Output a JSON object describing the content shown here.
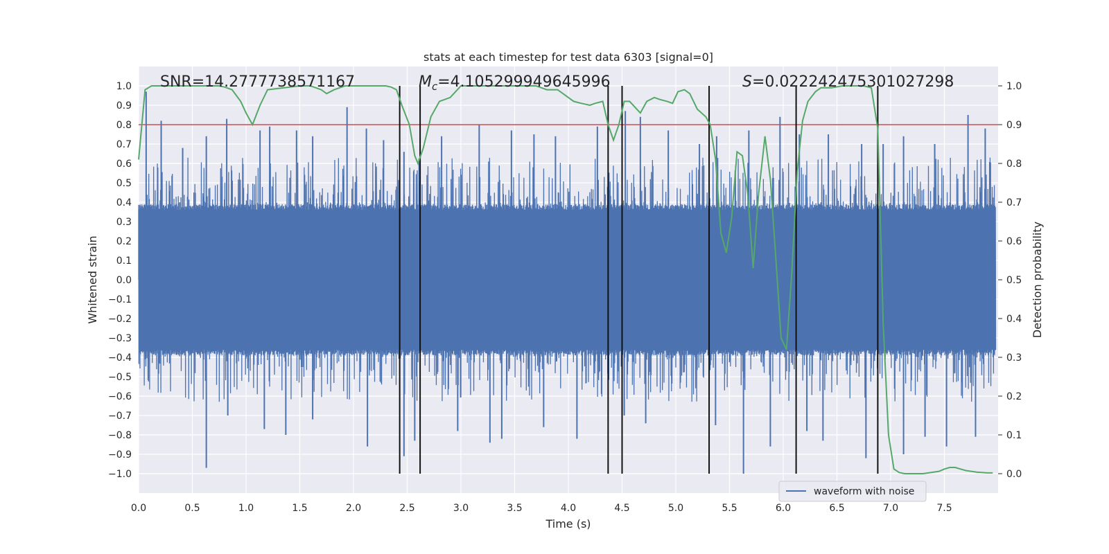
{
  "chart_data": {
    "type": "line",
    "title": "stats at each timestep for test data 6303 [signal=0]",
    "xlabel": "Time (s)",
    "ylabel": "Whitened strain",
    "y2label": "Detection probability",
    "xlim": [
      0.0,
      8.0
    ],
    "ylim": [
      -1.1,
      1.1
    ],
    "y2lim": [
      -0.05,
      1.05
    ],
    "xticks": [
      0.0,
      0.5,
      1.0,
      1.5,
      2.0,
      2.5,
      3.0,
      3.5,
      4.0,
      4.5,
      5.0,
      5.5,
      6.0,
      6.5,
      7.0,
      7.5
    ],
    "xtick_labels": [
      "0.0",
      "0.5",
      "1.0",
      "1.5",
      "2.0",
      "2.5",
      "3.0",
      "3.5",
      "4.0",
      "4.5",
      "5.0",
      "5.5",
      "6.0",
      "6.5",
      "7.0",
      "7.5"
    ],
    "yticks": [
      -1.0,
      -0.9,
      -0.8,
      -0.7,
      -0.6,
      -0.5,
      -0.4,
      -0.3,
      -0.2,
      -0.1,
      0.0,
      0.1,
      0.2,
      0.3,
      0.4,
      0.5,
      0.6,
      0.7,
      0.8,
      0.9,
      1.0
    ],
    "ytick_labels": [
      "−1.0",
      "−0.9",
      "−0.8",
      "−0.7",
      "−0.6",
      "−0.5",
      "−0.4",
      "−0.3",
      "−0.2",
      "−0.1",
      "0.0",
      "0.1",
      "0.2",
      "0.3",
      "0.4",
      "0.5",
      "0.6",
      "0.7",
      "0.8",
      "0.9",
      "1.0"
    ],
    "y2ticks": [
      0.0,
      0.1,
      0.2,
      0.3,
      0.4,
      0.5,
      0.6,
      0.7,
      0.8,
      0.9,
      1.0
    ],
    "y2tick_labels": [
      "0.0",
      "0.1",
      "0.2",
      "0.3",
      "0.4",
      "0.5",
      "0.6",
      "0.7",
      "0.8",
      "0.9",
      "1.0"
    ],
    "grid": true,
    "threshold": 0.9,
    "vlines": [
      2.43,
      2.62,
      4.37,
      4.5,
      5.31,
      6.12,
      6.88
    ],
    "annotations": {
      "snr": "SNR=14.2777738571167",
      "mc_symbol": "M",
      "mc_sub": "c",
      "mc_value": "=4.105299949645996",
      "s_symbol": "S",
      "s_value": "=0.022242475301027298"
    },
    "legend": {
      "label": "waveform with noise",
      "position": "lower-right"
    },
    "series": [
      {
        "name": "waveform with noise",
        "axis": "left",
        "color": "#4c72b0",
        "description": "noise waveform sampled densely; dense core about ±0.37 with spikes up to ±1.0",
        "peaks_high": [
          [
            0.07,
            0.97
          ],
          [
            0.21,
            0.82
          ],
          [
            0.41,
            0.68
          ],
          [
            0.63,
            0.74
          ],
          [
            0.82,
            0.83
          ],
          [
            1.13,
            0.77
          ],
          [
            1.22,
            0.79
          ],
          [
            1.47,
            0.77
          ],
          [
            1.62,
            0.74
          ],
          [
            1.94,
            0.89
          ],
          [
            2.12,
            0.78
          ],
          [
            2.28,
            0.72
          ],
          [
            2.47,
            0.66
          ],
          [
            2.82,
            0.74
          ],
          [
            3.17,
            0.8
          ],
          [
            3.47,
            0.77
          ],
          [
            3.68,
            0.75
          ],
          [
            3.88,
            0.74
          ],
          [
            4.27,
            0.79
          ],
          [
            4.53,
            0.87
          ],
          [
            4.67,
            0.84
          ],
          [
            4.93,
            0.77
          ],
          [
            5.22,
            0.7
          ],
          [
            5.38,
            0.74
          ],
          [
            5.68,
            0.77
          ],
          [
            5.97,
            0.84
          ],
          [
            6.15,
            0.75
          ],
          [
            6.42,
            0.75
          ],
          [
            6.73,
            0.7
          ],
          [
            6.93,
            0.7
          ],
          [
            7.12,
            0.74
          ],
          [
            7.41,
            0.7
          ],
          [
            7.72,
            0.85
          ],
          [
            7.88,
            0.78
          ]
        ],
        "peaks_low": [
          [
            0.63,
            -0.97
          ],
          [
            0.83,
            -0.7
          ],
          [
            1.17,
            -0.77
          ],
          [
            1.37,
            -0.8
          ],
          [
            1.62,
            -0.72
          ],
          [
            2.13,
            -0.86
          ],
          [
            2.47,
            -0.91
          ],
          [
            2.57,
            -0.83
          ],
          [
            2.97,
            -0.78
          ],
          [
            3.27,
            -0.84
          ],
          [
            3.38,
            -0.82
          ],
          [
            3.77,
            -0.76
          ],
          [
            4.08,
            -0.82
          ],
          [
            4.52,
            -0.7
          ],
          [
            4.72,
            -0.74
          ],
          [
            5.37,
            -0.75
          ],
          [
            5.63,
            -1.0
          ],
          [
            5.88,
            -0.86
          ],
          [
            6.22,
            -0.78
          ],
          [
            6.37,
            -0.83
          ],
          [
            6.77,
            -0.92
          ],
          [
            7.12,
            -0.9
          ],
          [
            7.32,
            -0.81
          ],
          [
            7.52,
            -0.86
          ],
          [
            7.79,
            -0.81
          ]
        ]
      },
      {
        "name": "detection probability",
        "axis": "right",
        "color": "#55a868",
        "x": [
          0.0,
          0.06,
          0.12,
          0.4,
          0.75,
          0.8,
          0.87,
          0.95,
          1.0,
          1.06,
          1.13,
          1.2,
          1.5,
          1.6,
          1.7,
          1.75,
          1.82,
          1.92,
          2.0,
          2.3,
          2.35,
          2.4,
          2.45,
          2.52,
          2.57,
          2.6,
          2.65,
          2.72,
          2.8,
          2.9,
          3.0,
          3.05,
          3.2,
          3.5,
          3.7,
          3.8,
          3.9,
          3.95,
          4.05,
          4.12,
          4.2,
          4.25,
          4.32,
          4.37,
          4.42,
          4.47,
          4.52,
          4.57,
          4.67,
          4.73,
          4.8,
          4.85,
          4.92,
          4.97,
          5.02,
          5.08,
          5.13,
          5.2,
          5.28,
          5.32,
          5.37,
          5.42,
          5.47,
          5.52,
          5.57,
          5.62,
          5.67,
          5.72,
          5.77,
          5.83,
          5.88,
          5.93,
          5.98,
          6.03,
          6.08,
          6.13,
          6.18,
          6.23,
          6.3,
          6.35,
          6.45,
          6.55,
          6.75,
          6.82,
          6.88,
          6.93,
          6.98,
          7.03,
          7.08,
          7.13,
          7.2,
          7.3,
          7.45,
          7.5,
          7.55,
          7.6,
          7.65,
          7.7,
          7.8,
          7.9,
          7.95
        ],
        "y": [
          0.81,
          0.99,
          1.0,
          1.0,
          1.0,
          0.997,
          0.99,
          0.96,
          0.93,
          0.9,
          0.95,
          0.99,
          1.0,
          1.0,
          0.99,
          0.98,
          0.99,
          1.0,
          1.0,
          1.0,
          0.997,
          0.99,
          0.95,
          0.9,
          0.82,
          0.8,
          0.84,
          0.92,
          0.96,
          0.97,
          1.0,
          1.0,
          1.0,
          1.0,
          1.0,
          0.99,
          0.99,
          0.98,
          0.96,
          0.955,
          0.95,
          0.955,
          0.96,
          0.9,
          0.86,
          0.9,
          0.96,
          0.96,
          0.93,
          0.96,
          0.97,
          0.965,
          0.96,
          0.955,
          0.985,
          0.99,
          0.98,
          0.94,
          0.92,
          0.9,
          0.81,
          0.62,
          0.57,
          0.66,
          0.83,
          0.82,
          0.72,
          0.53,
          0.72,
          0.87,
          0.76,
          0.56,
          0.35,
          0.32,
          0.52,
          0.78,
          0.91,
          0.96,
          0.985,
          0.995,
          0.995,
          1.0,
          1.0,
          0.995,
          0.89,
          0.39,
          0.1,
          0.012,
          0.003,
          0.0,
          0.0,
          0.0,
          0.006,
          0.012,
          0.016,
          0.016,
          0.012,
          0.008,
          0.004,
          0.002,
          0.002
        ]
      }
    ]
  }
}
